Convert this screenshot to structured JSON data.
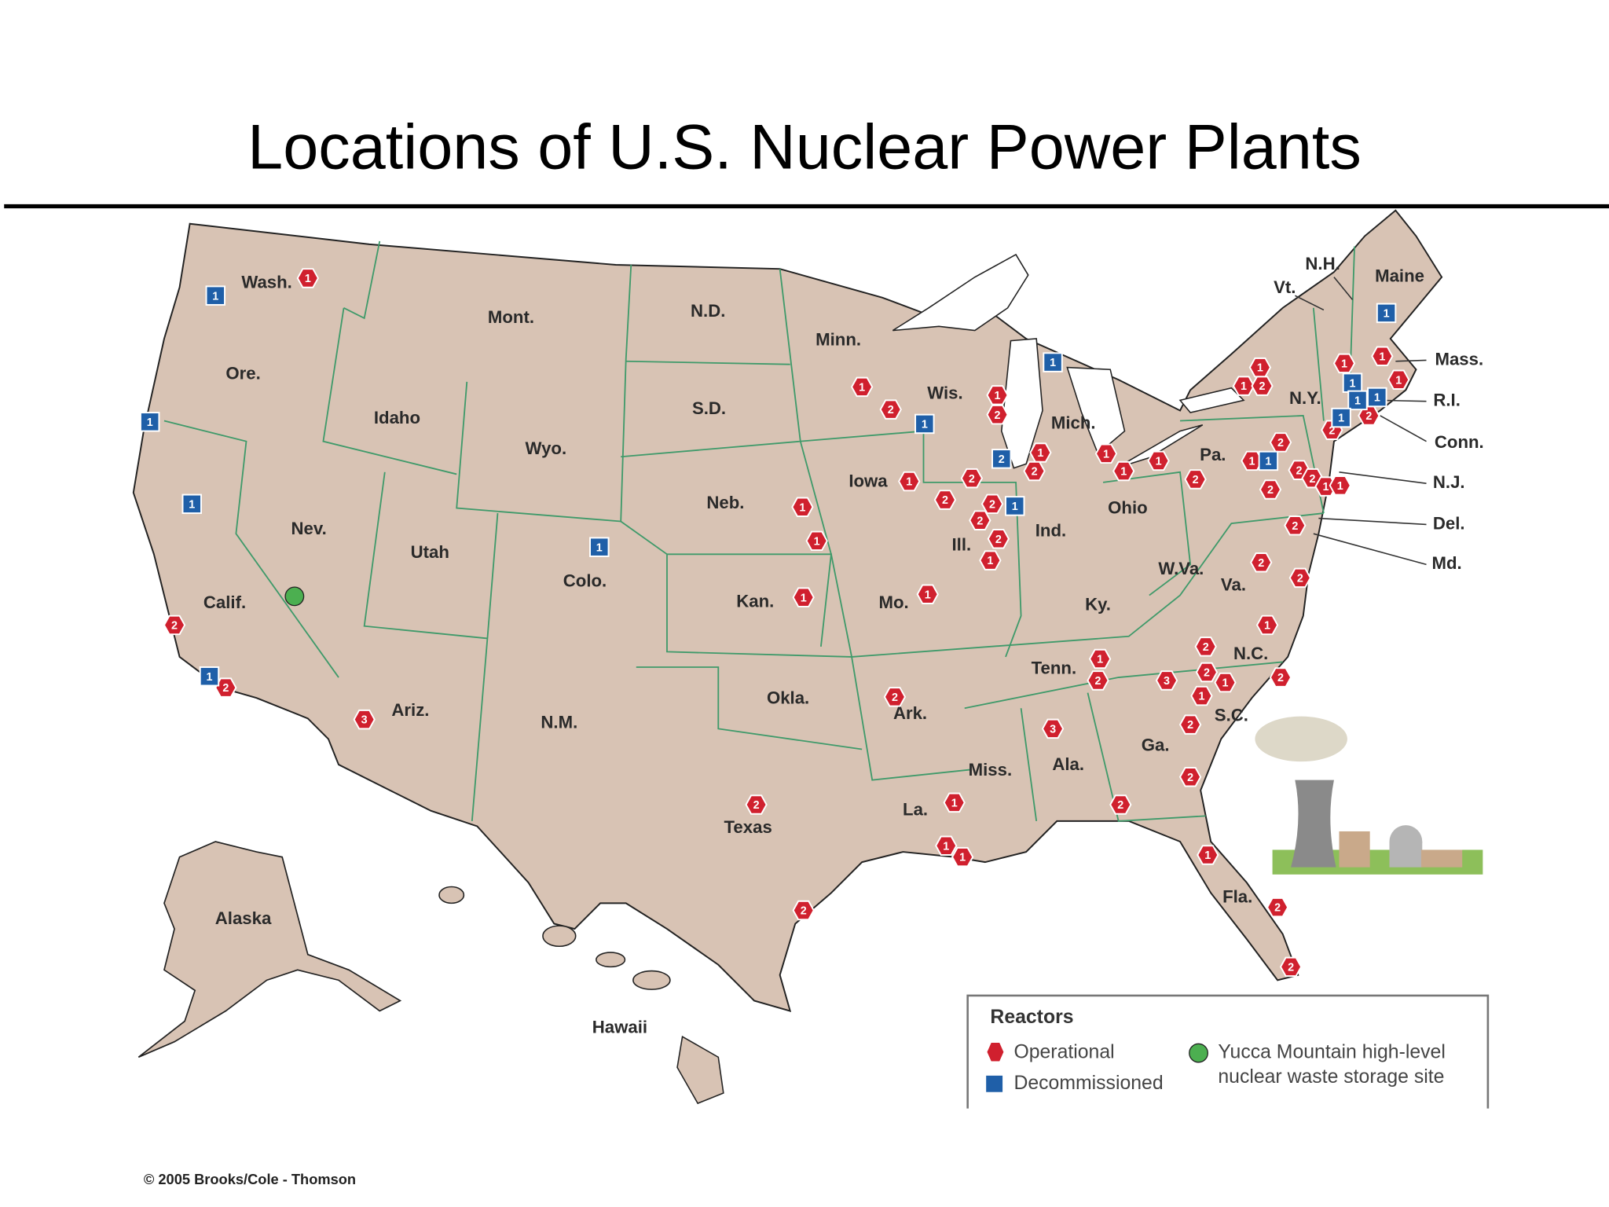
{
  "header": {
    "title": "Locations of U.S. Nuclear Power Plants"
  },
  "map": {
    "state_labels": [
      "Wash.",
      "Ore.",
      "Calif.",
      "Nev.",
      "Idaho",
      "Mont.",
      "Wyo.",
      "Utah",
      "Colo.",
      "Ariz.",
      "N.M.",
      "N.D.",
      "S.D.",
      "Neb.",
      "Kan.",
      "Okla.",
      "Texas",
      "Minn.",
      "Iowa",
      "Mo.",
      "Ark.",
      "La.",
      "Wis.",
      "Ill.",
      "Mich.",
      "Ind.",
      "Ohio",
      "Ky.",
      "Tenn.",
      "Miss.",
      "Ala.",
      "Ga.",
      "Fla.",
      "S.C.",
      "N.C.",
      "Va.",
      "W.Va.",
      "Pa.",
      "N.Y.",
      "Vt.",
      "N.H.",
      "Maine",
      "Mass.",
      "R.I.",
      "Conn.",
      "N.J.",
      "Del.",
      "Md.",
      "Alaska",
      "Hawaii"
    ],
    "markers": {
      "operational": [
        1,
        2,
        2,
        3,
        2,
        2,
        1,
        1,
        1,
        1,
        2,
        1,
        1,
        2,
        1,
        1,
        1,
        1,
        2,
        2,
        2,
        2,
        2,
        2,
        1,
        1,
        2,
        1,
        1,
        1,
        3,
        2,
        2,
        2,
        1,
        2,
        3,
        2,
        2,
        1,
        1,
        1,
        2,
        2,
        2,
        2,
        1,
        2,
        2,
        2,
        1,
        2,
        2,
        2,
        1,
        1,
        2,
        1,
        1,
        2,
        1,
        2,
        2,
        1,
        1
      ],
      "decommissioned": [
        1,
        1,
        1,
        1,
        1,
        1,
        1,
        2,
        1,
        1,
        1,
        1,
        1,
        1,
        1
      ]
    }
  },
  "legend": {
    "title": "Reactors",
    "operational": "Operational",
    "decommissioned": "Decommissioned",
    "storage_site": [
      "Yucca Mountain high-level",
      "nuclear waste storage site"
    ]
  },
  "credit": "© 2005 Brooks/Cole - Thomson"
}
